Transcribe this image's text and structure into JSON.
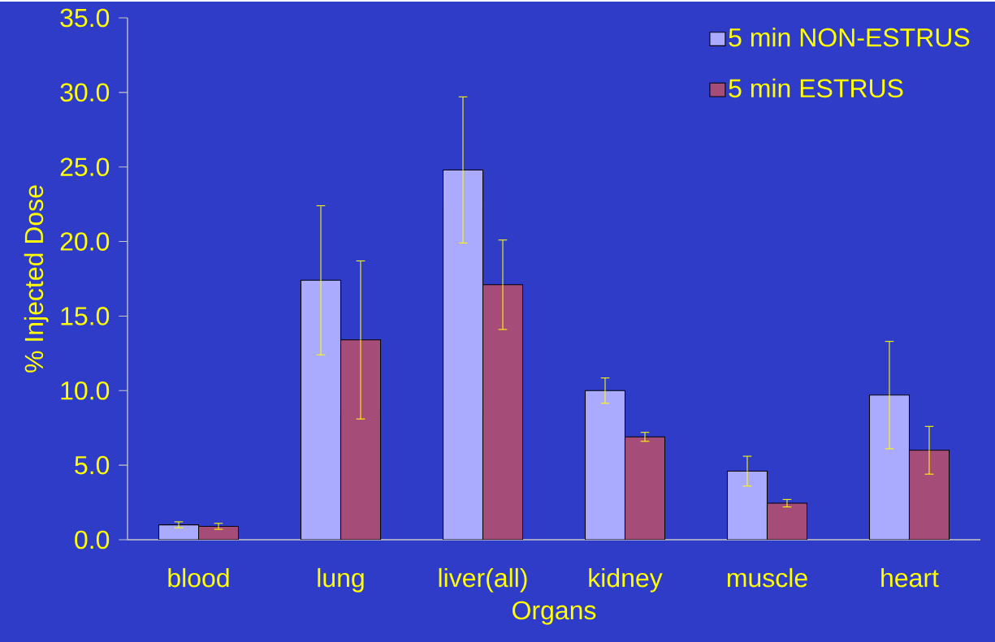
{
  "chart_data": {
    "type": "bar",
    "xlabel": "Organs",
    "ylabel": "% Injected Dose",
    "categories": [
      "blood",
      "lung",
      "liver(all)",
      "kidney",
      "muscle",
      "heart"
    ],
    "series": [
      {
        "name": "5 min NON-ESTRUS",
        "color": "#aaaaff",
        "values": [
          1.0,
          17.4,
          24.8,
          10.0,
          4.6,
          9.7
        ],
        "errors": [
          0.2,
          5.0,
          4.9,
          0.85,
          1.0,
          3.6
        ]
      },
      {
        "name": "5 min ESTRUS",
        "color": "#a64c78",
        "values": [
          0.9,
          13.4,
          17.1,
          6.9,
          2.45,
          6.0
        ],
        "errors": [
          0.2,
          5.3,
          3.0,
          0.3,
          0.25,
          1.6
        ]
      }
    ],
    "ylim": [
      0,
      35
    ],
    "yticks": [
      {
        "value": 0,
        "label": "0.0"
      },
      {
        "value": 5,
        "label": "5.0"
      },
      {
        "value": 10,
        "label": "10.0"
      },
      {
        "value": 15,
        "label": "15.0"
      },
      {
        "value": 20,
        "label": "20.0"
      },
      {
        "value": 25,
        "label": "25.0"
      },
      {
        "value": 30,
        "label": "30.0"
      },
      {
        "value": 35,
        "label": "35.0"
      }
    ],
    "grid": false,
    "legend": "top right"
  }
}
